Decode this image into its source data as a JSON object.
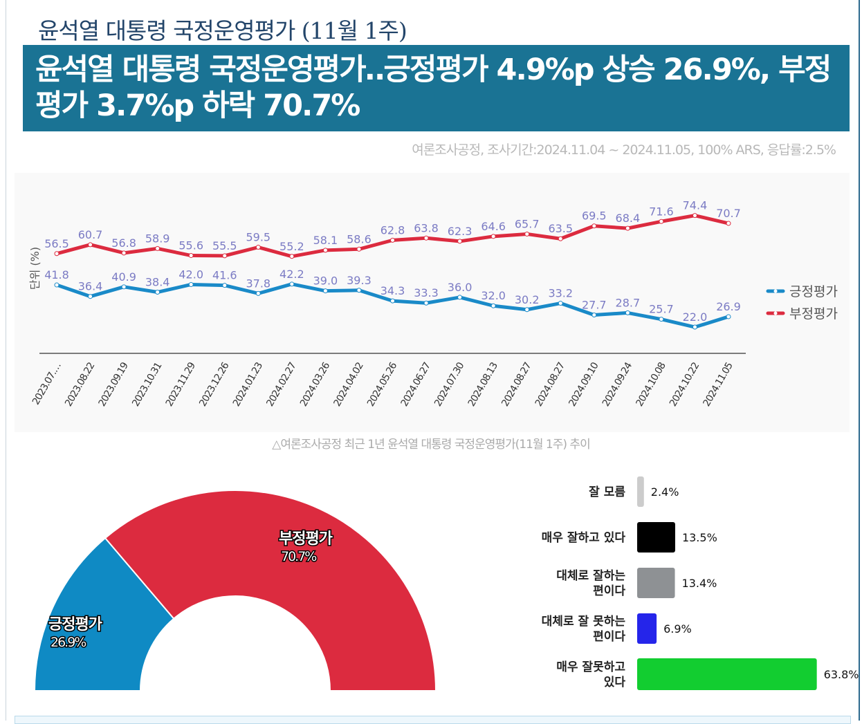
{
  "header": {
    "subtitle": "윤석열 대통령 국정운영평가 (11월 1주)",
    "headline": "윤석열 대통령 국정운영평가‥긍정평가 4.9%p 상승 26.9%, 부정평가 3.7%p 하락 70.7%",
    "source": "여론조사공정, 조사기간:2024.11.04 ~ 2024.11.05, 100% ARS, 응답률:2.5%"
  },
  "caption": "△여론조사공정 최근 1년 윤석열 대통령 국정운영평가(11월 1주) 추이",
  "chart_data": [
    {
      "type": "line",
      "ylabel": "단위 (%)",
      "ylim": [
        10,
        90
      ],
      "grid": false,
      "legend": "right",
      "categories": [
        "2023.07.…",
        "2023.08.22",
        "2023.09.19",
        "2023.10.31",
        "2023.11.29",
        "2023.12.26",
        "2024.01.23",
        "2024.02.27",
        "2024.03.26",
        "2024.04.02",
        "2024.05.26",
        "2024.06.27",
        "2024.07.30",
        "2024.08.13",
        "2024.08.27",
        "2024.08.27",
        "2024.09.10",
        "2024.09.24",
        "2024.10.08",
        "2024.10.22",
        "2024.11.05"
      ],
      "series": [
        {
          "name": "긍정평가",
          "color": "#1a8ac8",
          "values": [
            41.8,
            36.4,
            40.9,
            38.4,
            42.0,
            41.6,
            37.8,
            42.2,
            39.0,
            39.3,
            34.3,
            33.3,
            36.0,
            32.0,
            30.2,
            33.2,
            27.7,
            28.7,
            25.7,
            22.0,
            26.9
          ]
        },
        {
          "name": "부정평가",
          "color": "#dc2b3f",
          "values": [
            56.5,
            60.7,
            56.8,
            58.9,
            55.6,
            55.5,
            59.5,
            55.2,
            58.1,
            58.6,
            62.8,
            63.8,
            62.3,
            64.6,
            65.7,
            63.5,
            69.5,
            68.4,
            71.6,
            74.4,
            70.7
          ]
        }
      ],
      "label_color": "#7b7bc4"
    },
    {
      "type": "pie",
      "style": "half-donut",
      "slices": [
        {
          "name": "긍정평가",
          "value": 26.9,
          "label": "26.9%",
          "color": "#0f8ac4"
        },
        {
          "name": "부정평가",
          "value": 70.7,
          "label": "70.7%",
          "color": "#dc2b3f"
        }
      ]
    },
    {
      "type": "bar",
      "orientation": "horizontal",
      "categories": [
        "잘 모름",
        "매우 잘하고 있다",
        "대체로 잘하는 편이다",
        "대체로 잘 못하는 편이다",
        "매우 잘못하고 있다"
      ],
      "values": [
        2.4,
        13.5,
        13.4,
        6.9,
        63.8
      ],
      "labels": [
        "2.4%",
        "13.5%",
        "13.4%",
        "6.9%",
        "63.8%"
      ],
      "colors": [
        "#cccccc",
        "#000000",
        "#8e9194",
        "#2525ea",
        "#12cd30"
      ]
    }
  ]
}
